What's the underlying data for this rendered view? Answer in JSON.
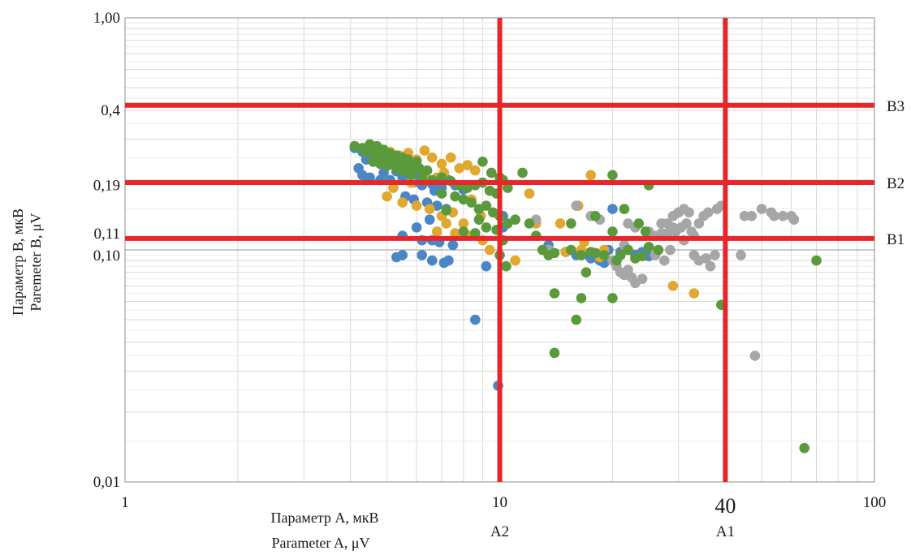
{
  "chart_data": {
    "type": "scatter",
    "x_scale": "log",
    "y_scale": "log",
    "xlim": [
      1,
      100
    ],
    "ylim": [
      0.01,
      1.0
    ],
    "grid": true,
    "xlabel_ru": "Параметр А, мкВ",
    "xlabel_en": "Parameter A, μV",
    "ylabel_ru": "Параметр В, мкВ",
    "ylabel_en": "Paremeter B, μV",
    "x_ticks": [
      {
        "value": 1,
        "label": "1"
      },
      {
        "value": 10,
        "label": "10"
      },
      {
        "value": 100,
        "label": "100"
      }
    ],
    "x_marker_tick": {
      "value": 40,
      "label": "40"
    },
    "y_ticks": [
      {
        "value": 1.0,
        "label": "1,00"
      },
      {
        "value": 0.4,
        "label": "0,4"
      },
      {
        "value": 0.19,
        "label": "0,19"
      },
      {
        "value": 0.11,
        "label": "0,11"
      },
      {
        "value": 0.1,
        "label": "0,10"
      },
      {
        "value": 0.01,
        "label": "0,01"
      }
    ],
    "threshold_color": "#e8262a",
    "vertical_thresholds": [
      {
        "value": 10,
        "label": "A2"
      },
      {
        "value": 40,
        "label": "A1"
      }
    ],
    "horizontal_thresholds": [
      {
        "value": 0.42,
        "label": "B3"
      },
      {
        "value": 0.195,
        "label": "B2"
      },
      {
        "value": 0.112,
        "label": "B1"
      }
    ],
    "series": [
      {
        "color": "#4a86c5",
        "points": [
          [
            4.1,
            0.275
          ],
          [
            4.3,
            0.265
          ],
          [
            4.5,
            0.255
          ],
          [
            4.4,
            0.245
          ],
          [
            4.6,
            0.24
          ],
          [
            4.8,
            0.235
          ],
          [
            5.0,
            0.25
          ],
          [
            5.2,
            0.235
          ],
          [
            5.4,
            0.23
          ],
          [
            5.6,
            0.225
          ],
          [
            5.3,
            0.218
          ],
          [
            5.8,
            0.215
          ],
          [
            6.0,
            0.21
          ],
          [
            6.3,
            0.205
          ],
          [
            4.2,
            0.225
          ],
          [
            4.5,
            0.205
          ],
          [
            4.8,
            0.2
          ],
          [
            5.1,
            0.2
          ],
          [
            5.5,
            0.205
          ],
          [
            5.9,
            0.196
          ],
          [
            6.2,
            0.19
          ],
          [
            6.6,
            0.192
          ],
          [
            7.0,
            0.186
          ],
          [
            7.3,
            0.2
          ],
          [
            7.6,
            0.19
          ],
          [
            8.0,
            0.182
          ],
          [
            4.3,
            0.21
          ],
          [
            4.4,
            0.2
          ],
          [
            5.6,
            0.17
          ],
          [
            5.9,
            0.165
          ],
          [
            6.4,
            0.16
          ],
          [
            6.8,
            0.155
          ],
          [
            7.2,
            0.15
          ],
          [
            6.5,
            0.135
          ],
          [
            6.0,
            0.125
          ],
          [
            5.5,
            0.115
          ],
          [
            6.2,
            0.11
          ],
          [
            6.6,
            0.11
          ],
          [
            6.9,
            0.108
          ],
          [
            7.5,
            0.105
          ],
          [
            5.5,
            0.095
          ],
          [
            5.3,
            0.093
          ],
          [
            6.2,
            0.095
          ],
          [
            6.6,
            0.09
          ],
          [
            7.1,
            0.088
          ],
          [
            7.3,
            0.09
          ],
          [
            9.2,
            0.085
          ],
          [
            10.2,
            0.14
          ],
          [
            10.2,
            0.125
          ],
          [
            8.6,
            0.05
          ],
          [
            9.9,
            0.026
          ],
          [
            13.5,
            0.105
          ],
          [
            15.0,
            0.098
          ],
          [
            16.0,
            0.095
          ],
          [
            17.0,
            0.096
          ],
          [
            17.5,
            0.092
          ],
          [
            18.0,
            0.094
          ],
          [
            18.5,
            0.09
          ],
          [
            19.0,
            0.088
          ],
          [
            19.5,
            0.1
          ],
          [
            20.0,
            0.15
          ],
          [
            21.0,
            0.098
          ],
          [
            22.0,
            0.1
          ],
          [
            23.0,
            0.095
          ],
          [
            24.0,
            0.098
          ],
          [
            25.0,
            0.094
          ],
          [
            5.0,
            0.255
          ],
          [
            5.7,
            0.245
          ],
          [
            4.9,
            0.215
          ],
          [
            6.7,
            0.18
          ]
        ]
      },
      {
        "color": "#e0a82e",
        "points": [
          [
            4.5,
            0.285
          ],
          [
            4.8,
            0.27
          ],
          [
            5.1,
            0.265
          ],
          [
            5.4,
            0.255
          ],
          [
            5.7,
            0.262
          ],
          [
            6.0,
            0.245
          ],
          [
            6.3,
            0.268
          ],
          [
            6.6,
            0.25
          ],
          [
            7.0,
            0.235
          ],
          [
            7.4,
            0.25
          ],
          [
            7.8,
            0.225
          ],
          [
            8.2,
            0.232
          ],
          [
            8.6,
            0.22
          ],
          [
            7.1,
            0.215
          ],
          [
            6.8,
            0.205
          ],
          [
            6.4,
            0.2
          ],
          [
            5.8,
            0.195
          ],
          [
            5.2,
            0.185
          ],
          [
            5.0,
            0.17
          ],
          [
            5.5,
            0.16
          ],
          [
            6.0,
            0.155
          ],
          [
            6.5,
            0.15
          ],
          [
            7.0,
            0.14
          ],
          [
            7.5,
            0.145
          ],
          [
            8.0,
            0.13
          ],
          [
            7.2,
            0.13
          ],
          [
            6.8,
            0.12
          ],
          [
            7.6,
            0.118
          ],
          [
            8.3,
            0.115
          ],
          [
            9.0,
            0.11
          ],
          [
            9.4,
            0.1
          ],
          [
            11.0,
            0.09
          ],
          [
            12.5,
            0.13
          ],
          [
            12.0,
            0.175
          ],
          [
            14.5,
            0.13
          ],
          [
            16.2,
            0.155
          ],
          [
            16.8,
            0.108
          ],
          [
            18.5,
            0.093
          ],
          [
            16.5,
            0.1
          ],
          [
            19.0,
            0.1
          ],
          [
            15.0,
            0.098
          ],
          [
            17.5,
            0.21
          ],
          [
            29.0,
            0.07
          ],
          [
            33.0,
            0.065
          ],
          [
            8.4,
            0.165
          ],
          [
            8.9,
            0.14
          ]
        ]
      },
      {
        "color": "#a6a6a6",
        "points": [
          [
            12.5,
            0.135
          ],
          [
            13.5,
            0.1
          ],
          [
            16.0,
            0.155
          ],
          [
            17.5,
            0.14
          ],
          [
            18.5,
            0.135
          ],
          [
            19.0,
            0.095
          ],
          [
            20.0,
            0.09
          ],
          [
            20.5,
            0.085
          ],
          [
            21.0,
            0.08
          ],
          [
            21.5,
            0.078
          ],
          [
            22.0,
            0.082
          ],
          [
            22.5,
            0.076
          ],
          [
            23.0,
            0.072
          ],
          [
            24.0,
            0.075
          ],
          [
            21.5,
            0.105
          ],
          [
            22.0,
            0.13
          ],
          [
            23.0,
            0.125
          ],
          [
            25.0,
            0.12
          ],
          [
            26.0,
            0.115
          ],
          [
            27.0,
            0.118
          ],
          [
            28.0,
            0.13
          ],
          [
            29.0,
            0.14
          ],
          [
            30.0,
            0.145
          ],
          [
            31.0,
            0.15
          ],
          [
            32.0,
            0.145
          ],
          [
            29.5,
            0.12
          ],
          [
            30.5,
            0.125
          ],
          [
            31.5,
            0.13
          ],
          [
            33.0,
            0.115
          ],
          [
            34.0,
            0.13
          ],
          [
            35.0,
            0.14
          ],
          [
            36.0,
            0.145
          ],
          [
            38.0,
            0.15
          ],
          [
            39.0,
            0.155
          ],
          [
            33.0,
            0.095
          ],
          [
            34.0,
            0.09
          ],
          [
            35.5,
            0.092
          ],
          [
            36.5,
            0.085
          ],
          [
            37.5,
            0.095
          ],
          [
            28.5,
            0.1
          ],
          [
            27.5,
            0.09
          ],
          [
            26.0,
            0.095
          ],
          [
            30.0,
            0.145
          ],
          [
            29.0,
            0.125
          ],
          [
            32.5,
            0.12
          ],
          [
            31.0,
            0.11
          ],
          [
            44.0,
            0.095
          ],
          [
            45.0,
            0.14
          ],
          [
            47.0,
            0.14
          ],
          [
            50.0,
            0.15
          ],
          [
            53.0,
            0.145
          ],
          [
            54.0,
            0.14
          ],
          [
            57.0,
            0.14
          ],
          [
            60.0,
            0.14
          ],
          [
            61.0,
            0.135
          ],
          [
            48.0,
            0.035
          ],
          [
            27.0,
            0.13
          ],
          [
            28.0,
            0.118
          ]
        ]
      },
      {
        "color": "#5a9a3c",
        "points": [
          [
            4.1,
            0.28
          ],
          [
            4.3,
            0.275
          ],
          [
            4.5,
            0.285
          ],
          [
            4.7,
            0.28
          ],
          [
            4.9,
            0.27
          ],
          [
            5.1,
            0.26
          ],
          [
            5.3,
            0.255
          ],
          [
            5.5,
            0.25
          ],
          [
            5.7,
            0.245
          ],
          [
            6.0,
            0.24
          ],
          [
            4.4,
            0.265
          ],
          [
            4.6,
            0.26
          ],
          [
            4.8,
            0.255
          ],
          [
            5.0,
            0.245
          ],
          [
            5.2,
            0.24
          ],
          [
            5.4,
            0.235
          ],
          [
            5.6,
            0.23
          ],
          [
            5.8,
            0.228
          ],
          [
            6.1,
            0.225
          ],
          [
            6.4,
            0.22
          ],
          [
            4.6,
            0.24
          ],
          [
            4.8,
            0.235
          ],
          [
            5.0,
            0.23
          ],
          [
            5.3,
            0.225
          ],
          [
            5.5,
            0.218
          ],
          [
            5.8,
            0.21
          ],
          [
            6.2,
            0.205
          ],
          [
            6.6,
            0.2
          ],
          [
            7.0,
            0.205
          ],
          [
            7.4,
            0.198
          ],
          [
            7.8,
            0.19
          ],
          [
            8.2,
            0.185
          ],
          [
            8.6,
            0.19
          ],
          [
            9.0,
            0.195
          ],
          [
            9.4,
            0.18
          ],
          [
            9.8,
            0.175
          ],
          [
            10.0,
            0.205
          ],
          [
            10.2,
            0.2
          ],
          [
            10.5,
            0.185
          ],
          [
            11.5,
            0.215
          ],
          [
            7.0,
            0.175
          ],
          [
            7.6,
            0.17
          ],
          [
            8.0,
            0.165
          ],
          [
            8.4,
            0.16
          ],
          [
            8.8,
            0.15
          ],
          [
            9.2,
            0.155
          ],
          [
            9.6,
            0.145
          ],
          [
            10.0,
            0.14
          ],
          [
            10.5,
            0.13
          ],
          [
            9.8,
            0.122
          ],
          [
            9.2,
            0.125
          ],
          [
            8.6,
            0.118
          ],
          [
            8.0,
            0.12
          ],
          [
            8.8,
            0.135
          ],
          [
            7.2,
            0.148
          ],
          [
            10.0,
            0.095
          ],
          [
            10.4,
            0.085
          ],
          [
            10.2,
            0.11
          ],
          [
            11.0,
            0.135
          ],
          [
            12.0,
            0.13
          ],
          [
            12.5,
            0.115
          ],
          [
            13.0,
            0.1
          ],
          [
            13.5,
            0.095
          ],
          [
            14.0,
            0.097
          ],
          [
            15.5,
            0.1
          ],
          [
            16.5,
            0.095
          ],
          [
            17.5,
            0.098
          ],
          [
            18.0,
            0.097
          ],
          [
            19.0,
            0.095
          ],
          [
            20.5,
            0.09
          ],
          [
            21.0,
            0.095
          ],
          [
            22.0,
            0.1
          ],
          [
            23.0,
            0.092
          ],
          [
            24.0,
            0.094
          ],
          [
            25.0,
            0.103
          ],
          [
            26.5,
            0.1
          ],
          [
            15.5,
            0.13
          ],
          [
            18.0,
            0.14
          ],
          [
            20.0,
            0.12
          ],
          [
            21.5,
            0.15
          ],
          [
            23.5,
            0.13
          ],
          [
            24.5,
            0.12
          ],
          [
            25.0,
            0.19
          ],
          [
            20.0,
            0.21
          ],
          [
            17.0,
            0.08
          ],
          [
            14.0,
            0.065
          ],
          [
            16.5,
            0.062
          ],
          [
            20.0,
            0.062
          ],
          [
            16.0,
            0.05
          ],
          [
            14.0,
            0.036
          ],
          [
            39.0,
            0.058
          ],
          [
            70.0,
            0.09
          ],
          [
            65.0,
            0.014
          ],
          [
            9.0,
            0.24
          ],
          [
            9.5,
            0.215
          ]
        ]
      }
    ]
  }
}
